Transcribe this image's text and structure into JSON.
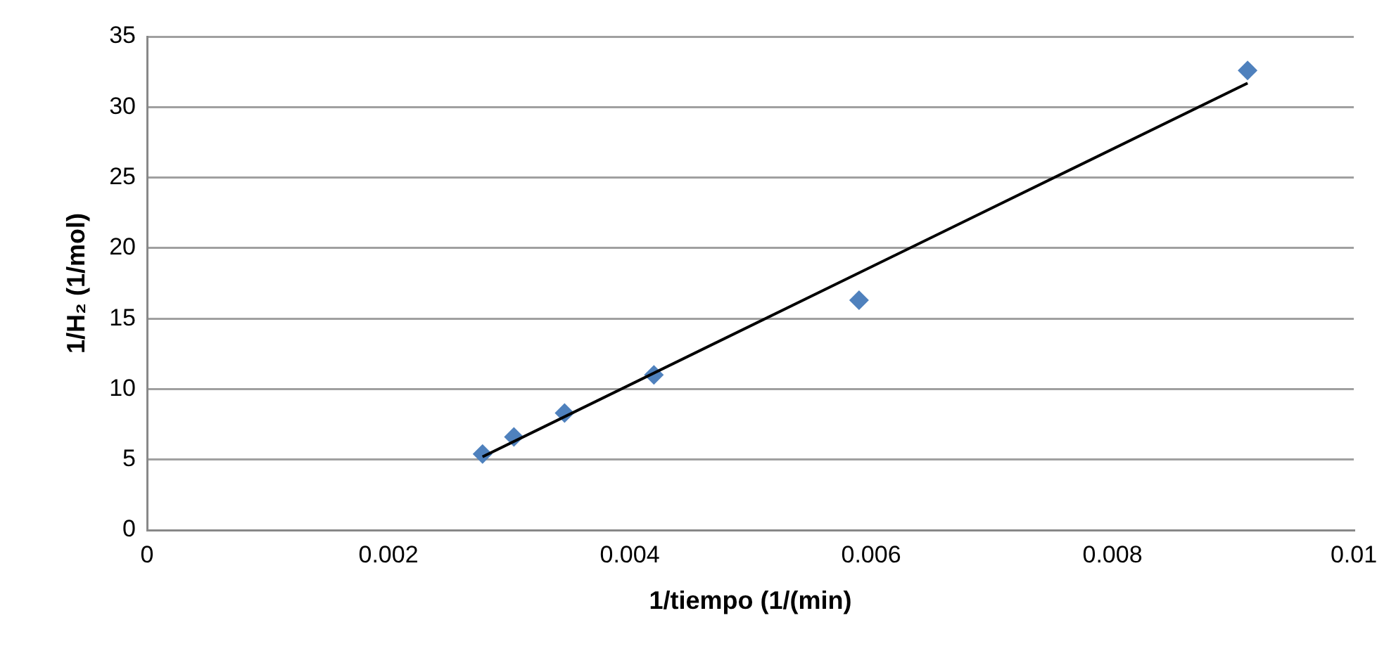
{
  "chart_data": {
    "type": "scatter",
    "xlabel": "1/tiempo (1/(min)",
    "ylabel": "1/H₂ (1/mol)",
    "xlim": [
      0,
      0.01
    ],
    "xticks": [
      0,
      0.002,
      0.004,
      0.006,
      0.008,
      0.01
    ],
    "ylim": [
      0,
      35
    ],
    "yticks": [
      0,
      5,
      10,
      15,
      20,
      25,
      30,
      35
    ],
    "grid": "y",
    "legend": false,
    "marker": "diamond",
    "series": [
      {
        "type": "scatter",
        "color": "#4f81bd",
        "x": [
          0.00278,
          0.00304,
          0.00346,
          0.0042,
          0.0059,
          0.00912
        ],
        "values": [
          5.4,
          6.6,
          8.3,
          11.0,
          16.3,
          32.6
        ]
      },
      {
        "type": "line",
        "color": "#000000",
        "marker": "none",
        "x": [
          0.00278,
          0.00912
        ],
        "values": [
          5.2,
          31.7
        ]
      }
    ]
  }
}
